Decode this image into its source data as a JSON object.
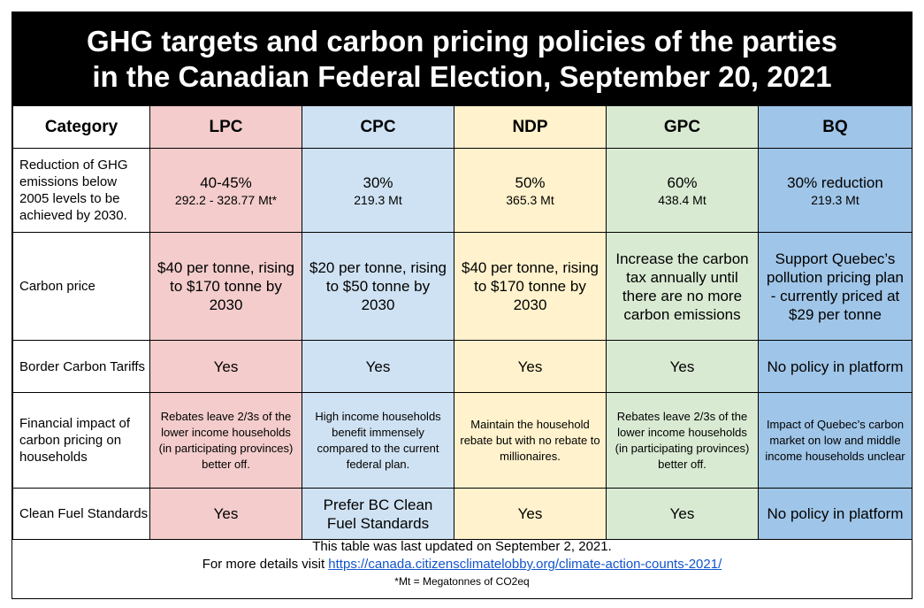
{
  "title": {
    "line1": "GHG targets and carbon pricing policies of the parties",
    "line2": "in the Canadian Federal Election, September 20, 2021"
  },
  "headers": [
    "Category",
    "LPC",
    "CPC",
    "NDP",
    "GPC",
    "BQ"
  ],
  "rows": [
    {
      "category": "Reduction of GHG emissions below 2005 levels to be achieved by 2030.",
      "cells": [
        {
          "main": "40-45%",
          "sub": "292.2 - 328.77 Mt*"
        },
        {
          "main": "30%",
          "sub": "219.3 Mt"
        },
        {
          "main": "50%",
          "sub": "365.3 Mt"
        },
        {
          "main": "60%",
          "sub": "438.4 Mt"
        },
        {
          "main": "30% reduction",
          "sub": "219.3 Mt"
        }
      ]
    },
    {
      "category": "Carbon price",
      "cells": [
        "$40 per tonne, rising to $170 tonne by 2030",
        "$20 per tonne, rising to $50 tonne by 2030",
        "$40 per tonne, rising to $170 tonne by 2030",
        "Increase the carbon tax annually until there are no more carbon emissions",
        "Support Quebec’s pollution pricing plan - currently priced at $29 per tonne"
      ]
    },
    {
      "category": "Border Carbon Tariffs",
      "cells": [
        "Yes",
        "Yes",
        "Yes",
        "Yes",
        "No policy in platform"
      ]
    },
    {
      "category": "Financial impact of carbon pricing on households",
      "cells": [
        "Rebates leave 2/3s of the  lower income households (in participating provinces) better off.",
        "High income households benefit immensely compared to the current federal plan.",
        "Maintain the household rebate but with no rebate to millionaires.",
        "Rebates leave 2/3s of the  lower income households (in participating provinces) better off.",
        "Impact of Quebec’s carbon market on low and middle income households unclear"
      ]
    },
    {
      "category": "Clean Fuel Standards",
      "cells": [
        "Yes",
        "Prefer BC Clean Fuel Standards",
        "Yes",
        "Yes",
        "No policy in platform"
      ]
    }
  ],
  "footer": {
    "updated": "This table was last updated on September 2, 2021.",
    "details_prefix": "For more details visit ",
    "link": "https://canada.citizensclimatelobby.org/climate-action-counts-2021/",
    "note": "*Mt = Megatonnes of CO2eq"
  },
  "colors": {
    "LPC": "#f4cccc",
    "CPC": "#cfe2f3",
    "NDP": "#fff2cc",
    "GPC": "#d9ead3",
    "BQ": "#9fc5e8"
  }
}
